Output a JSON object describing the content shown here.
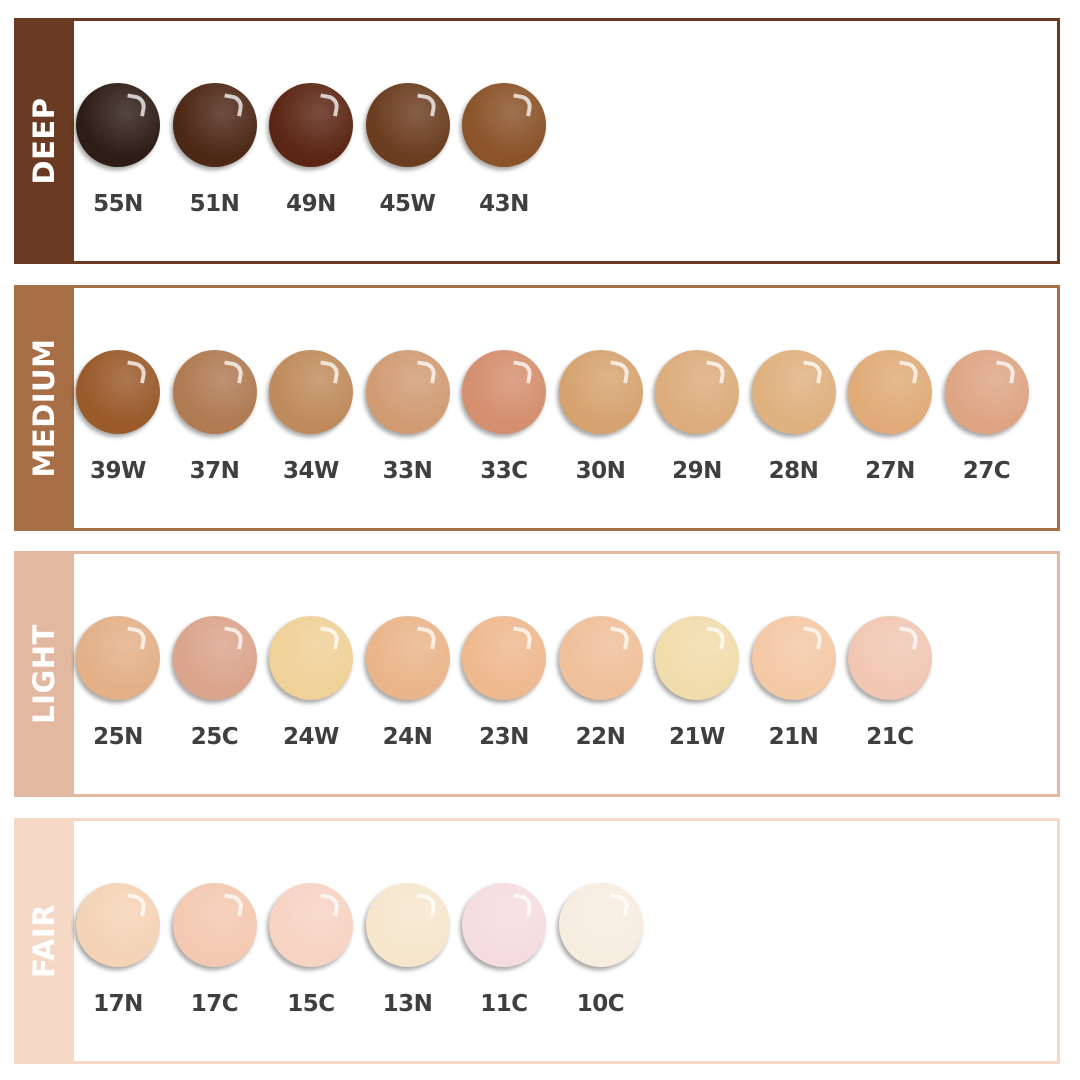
{
  "groups": [
    {
      "name": "DEEP",
      "color": "#6b3a22",
      "shades": [
        {
          "label": "55N",
          "color": "#2e1d16"
        },
        {
          "label": "51N",
          "color": "#4e2817"
        },
        {
          "label": "49N",
          "color": "#5c2614"
        },
        {
          "label": "45W",
          "color": "#6b3d20"
        },
        {
          "label": "43N",
          "color": "#8a5329"
        }
      ]
    },
    {
      "name": "MEDIUM",
      "color": "#a86e45",
      "shades": [
        {
          "label": "39W",
          "color": "#9a5a2a"
        },
        {
          "label": "37N",
          "color": "#b07a52"
        },
        {
          "label": "34W",
          "color": "#c08b5c"
        },
        {
          "label": "33N",
          "color": "#d19c74"
        },
        {
          "label": "33C",
          "color": "#d48f6e"
        },
        {
          "label": "30N",
          "color": "#d6a370"
        },
        {
          "label": "29N",
          "color": "#dcac7c"
        },
        {
          "label": "28N",
          "color": "#dfb17f"
        },
        {
          "label": "27N",
          "color": "#e0ab78"
        },
        {
          "label": "27C",
          "color": "#dea584"
        }
      ]
    },
    {
      "name": "LIGHT",
      "color": "#e2b9a0",
      "shades": [
        {
          "label": "25N",
          "color": "#e3b088"
        },
        {
          "label": "25C",
          "color": "#dba48c"
        },
        {
          "label": "24W",
          "color": "#f0d198"
        },
        {
          "label": "24N",
          "color": "#eab58a"
        },
        {
          "label": "23N",
          "color": "#efb98f"
        },
        {
          "label": "22N",
          "color": "#efc09a"
        },
        {
          "label": "21W",
          "color": "#f1dcab"
        },
        {
          "label": "21N",
          "color": "#f4c9a6"
        },
        {
          "label": "21C",
          "color": "#f1c7b3"
        }
      ]
    },
    {
      "name": "FAIR",
      "color": "#f5d8c6",
      "shades": [
        {
          "label": "17N",
          "color": "#f4d3b6"
        },
        {
          "label": "17C",
          "color": "#f4c9b1"
        },
        {
          "label": "15C",
          "color": "#f7d3c3"
        },
        {
          "label": "13N",
          "color": "#f6e6cd"
        },
        {
          "label": "11C",
          "color": "#f5dddf"
        },
        {
          "label": "10C",
          "color": "#f7ece0"
        }
      ]
    }
  ]
}
